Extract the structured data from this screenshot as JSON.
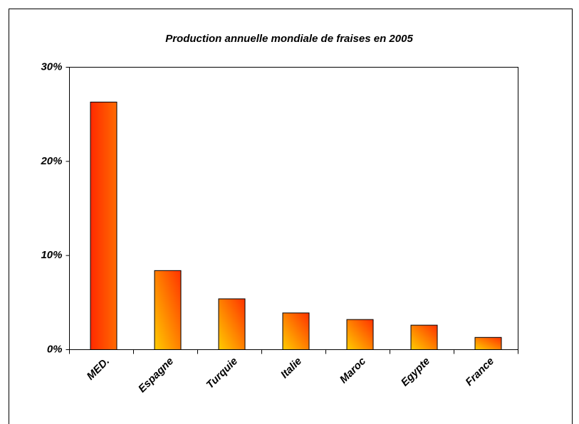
{
  "chart_data": {
    "type": "bar",
    "title": "Production annuelle mondiale de fraises en 2005",
    "categories": [
      "MED.",
      "Espagne",
      "Turquie",
      "Italie",
      "Maroc",
      "Egypte",
      "France"
    ],
    "values": [
      26.3,
      8.4,
      5.4,
      3.9,
      3.2,
      2.6,
      1.3
    ],
    "colors": [
      [
        "#ff2a00",
        "#ff6a00"
      ],
      [
        "#ffcc00",
        "#ff3300"
      ],
      [
        "#ffcc00",
        "#ff3300"
      ],
      [
        "#ffcc00",
        "#ff3300"
      ],
      [
        "#ffcc00",
        "#ff3300"
      ],
      [
        "#ffcc00",
        "#ff3300"
      ],
      [
        "#ffcc00",
        "#ff3300"
      ]
    ],
    "ylim": [
      0,
      30
    ],
    "yticks": [
      {
        "value": 0,
        "label": "0%"
      },
      {
        "value": 10,
        "label": "10%"
      },
      {
        "value": 20,
        "label": "20%"
      },
      {
        "value": 30,
        "label": "30%"
      }
    ],
    "grid": false
  }
}
